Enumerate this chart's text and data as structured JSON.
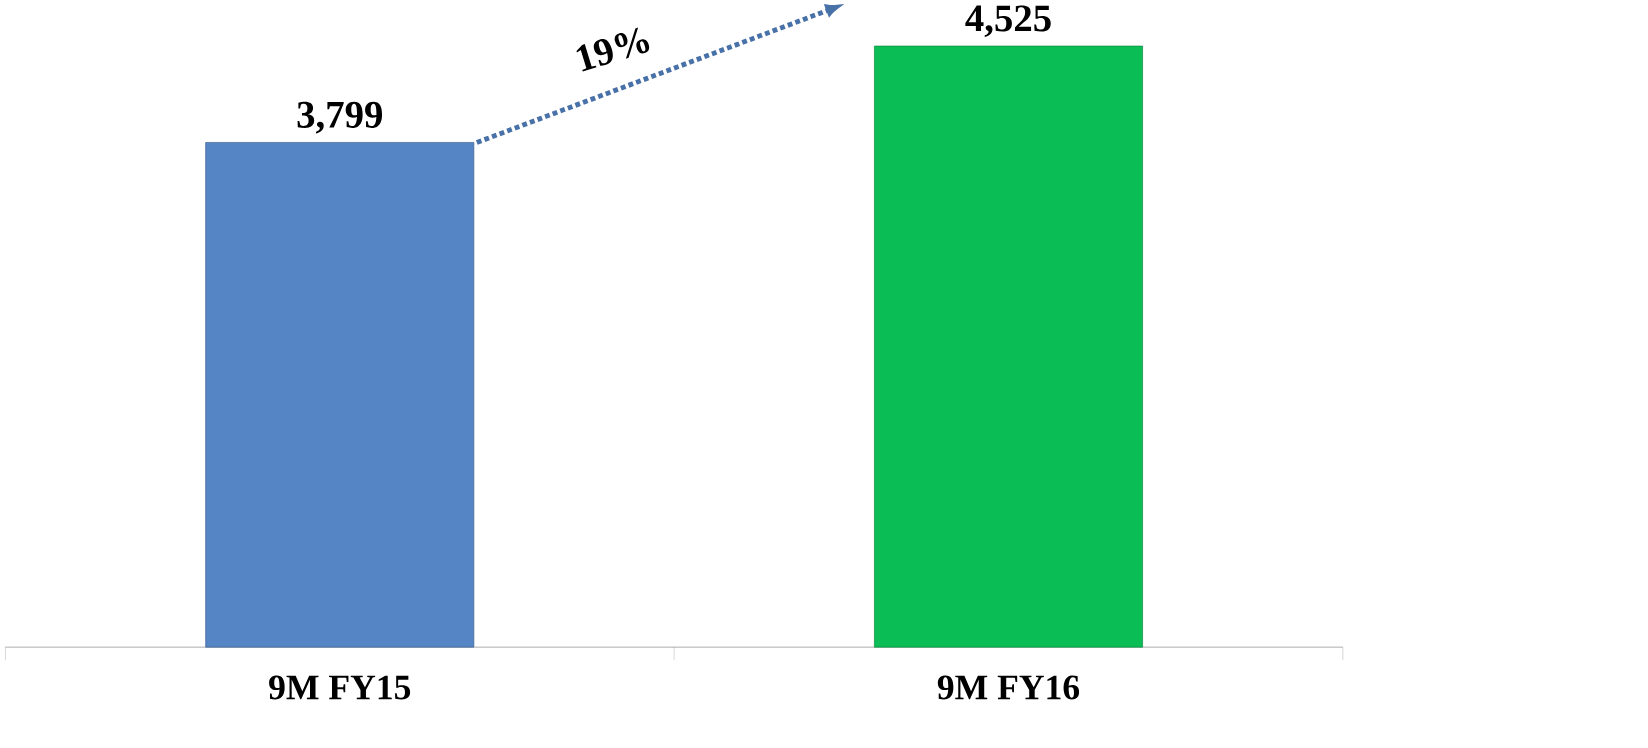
{
  "chart_data": {
    "type": "bar",
    "categories": [
      "9M FY15",
      "9M FY16"
    ],
    "values": [
      3799,
      4525
    ],
    "value_labels": [
      "3,799",
      "4,525"
    ],
    "colors": [
      "#5585c5",
      "#0bbd55"
    ],
    "annotations": [
      "19%"
    ]
  }
}
